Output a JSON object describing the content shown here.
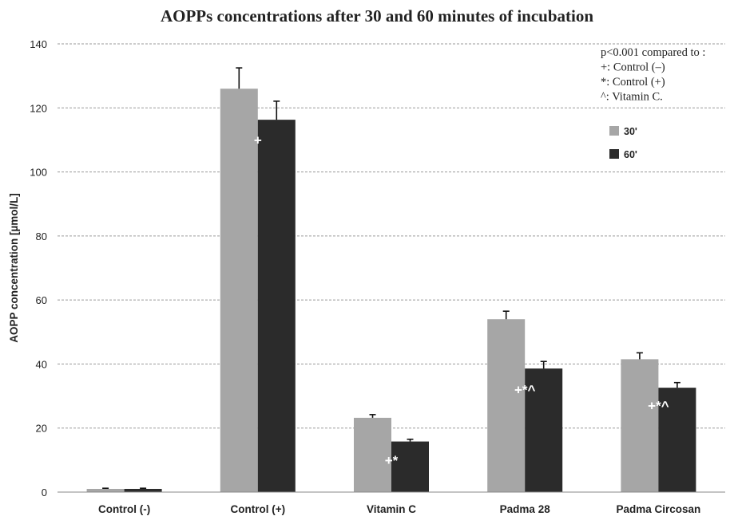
{
  "chart_data": {
    "type": "bar",
    "title": "AOPPs concentrations after 30 and 60 minutes of incubation",
    "xlabel": "",
    "ylabel": "AOPP concentration [µmol/L]",
    "ylim": [
      0,
      140
    ],
    "yticks": [
      "0",
      "20",
      "40",
      "60",
      "80",
      "100",
      "120",
      "140"
    ],
    "grid": true,
    "legend_position": "top-right",
    "categories": [
      "Control (-)",
      "Control (+)",
      "Vitamin C",
      "Padma 28",
      "Padma Circosan"
    ],
    "series": [
      {
        "name": "30'",
        "color": "#a6a6a6",
        "values": [
          1.0,
          126.0,
          23.2,
          54.0,
          41.5
        ],
        "errors": [
          0.2,
          6.5,
          1.0,
          2.5,
          2.0
        ]
      },
      {
        "name": "60'",
        "color": "#2b2b2b",
        "values": [
          1.0,
          116.3,
          15.8,
          38.6,
          32.6
        ],
        "errors": [
          0.2,
          5.8,
          0.7,
          2.2,
          1.6
        ]
      }
    ],
    "significance_marks": [
      {
        "category": "Control (+)",
        "text": "+",
        "y": 110
      },
      {
        "category": "Vitamin C",
        "text": "+*",
        "y": 10
      },
      {
        "category": "Padma 28",
        "text": "+*^",
        "y": 32
      },
      {
        "category": "Padma Circosan",
        "text": "+*^",
        "y": 27
      }
    ],
    "annotation_lines": [
      "p<0.001 compared to :",
      "+: Control (–)",
      "*: Control (+)",
      "^: Vitamin  C."
    ]
  }
}
